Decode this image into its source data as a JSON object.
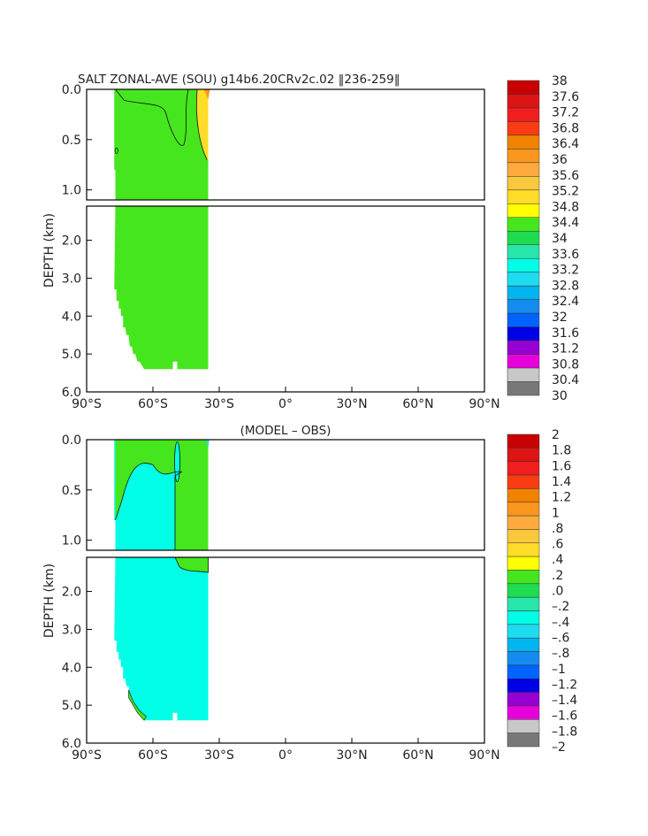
{
  "chart_data": [
    {
      "type": "heatmap",
      "title": "SALT ZONAL-AVE (SOU) g14b6.20CRv2c.02 ‖236-259‖",
      "ylabel": "DEPTH (km)",
      "x_ticks": [
        "90°S",
        "60°S",
        "30°S",
        "0°",
        "30°N",
        "60°N",
        "90°N"
      ],
      "x_values": [
        -90,
        -60,
        -30,
        0,
        30,
        60,
        90
      ],
      "xlim": [
        -90,
        90
      ],
      "upper_panel": {
        "ylim": [
          0.0,
          1.1
        ],
        "y_ticks": [
          "0.0",
          "0.5",
          "1.0"
        ],
        "y_values": [
          0.0,
          0.5,
          1.0
        ]
      },
      "lower_panel": {
        "ylim": [
          1.1,
          6.0
        ],
        "y_ticks": [
          "2.0",
          "3.0",
          "4.0",
          "5.0",
          "6.0"
        ],
        "y_values": [
          2.0,
          3.0,
          4.0,
          5.0,
          6.0
        ]
      },
      "colorbar": {
        "labels": [
          "38",
          "37.6",
          "37.2",
          "36.8",
          "36.4",
          "36",
          "35.6",
          "35.2",
          "34.8",
          "34.4",
          "34",
          "33.6",
          "33.2",
          "32.8",
          "32.4",
          "32",
          "31.6",
          "31.2",
          "30.8",
          "30.4",
          "30"
        ],
        "colors": [
          "#c80000",
          "#dc1414",
          "#f01e1e",
          "#fa3c14",
          "#f08200",
          "#fa961e",
          "#ffaa3c",
          "#fac83c",
          "#ffdc28",
          "#ffff00",
          "#46e61e",
          "#1edc50",
          "#28e6aa",
          "#00ffe6",
          "#1edcf0",
          "#00b4f0",
          "#148cf0",
          "#0064ff",
          "#0000e6",
          "#9600d2",
          "#e600dc",
          "#c8c8c8",
          "#787878"
        ]
      },
      "data_extent": {
        "lat_min": -77,
        "lat_max": -35,
        "max_depth_km": 5.4
      },
      "dominant_value_range": "34.4-34.8"
    },
    {
      "type": "heatmap",
      "title": "(MODEL – OBS)",
      "ylabel": "DEPTH (km)",
      "x_ticks": [
        "90°S",
        "60°S",
        "30°S",
        "0°",
        "30°N",
        "60°N",
        "90°N"
      ],
      "x_values": [
        -90,
        -60,
        -30,
        0,
        30,
        60,
        90
      ],
      "xlim": [
        -90,
        90
      ],
      "upper_panel": {
        "ylim": [
          0.0,
          1.1
        ],
        "y_ticks": [
          "0.0",
          "0.5",
          "1.0"
        ],
        "y_values": [
          0.0,
          0.5,
          1.0
        ]
      },
      "lower_panel": {
        "ylim": [
          1.1,
          6.0
        ],
        "y_ticks": [
          "2.0",
          "3.0",
          "4.0",
          "5.0",
          "6.0"
        ],
        "y_values": [
          2.0,
          3.0,
          4.0,
          5.0,
          6.0
        ]
      },
      "colorbar": {
        "labels": [
          "2",
          "1.8",
          "1.6",
          "1.4",
          "1.2",
          "1",
          ".8",
          ".6",
          ".4",
          ".2",
          ".0",
          "–.2",
          "–.4",
          "–.6",
          "–.8",
          "–1",
          "–1.2",
          "–1.4",
          "–1.6",
          "–1.8",
          "–2"
        ],
        "colors": [
          "#c80000",
          "#dc1414",
          "#f01e1e",
          "#fa3c14",
          "#f08200",
          "#fa961e",
          "#ffaa3c",
          "#fac83c",
          "#ffdc28",
          "#ffff00",
          "#46e61e",
          "#1edc50",
          "#28e6aa",
          "#00ffe6",
          "#1edcf0",
          "#00b4f0",
          "#148cf0",
          "#0064ff",
          "#0000e6",
          "#9600d2",
          "#e600dc",
          "#c8c8c8",
          "#787878"
        ]
      },
      "data_extent": {
        "lat_min": -77,
        "lat_max": -35,
        "max_depth_km": 5.4
      },
      "dominant_value_range": "-0.2-0.0"
    }
  ]
}
